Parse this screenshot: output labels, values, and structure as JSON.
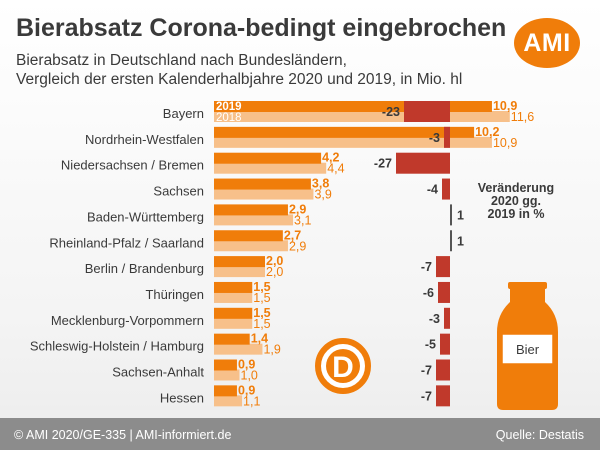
{
  "header": {
    "title": "Bierabsatz Corona-bedingt eingebrochen",
    "subtitle_line1": "Bierabsatz in Deutschland nach Bundesländern,",
    "subtitle_line2": "Vergleich der ersten Kalenderhalbjahre 2020 und 2019, in Mio. hl",
    "logo_text": "AMI"
  },
  "footer": {
    "left": "© AMI 2020/GE-335 | AMI-informiert.de",
    "right": "Quelle: Destatis"
  },
  "decorations": {
    "bottle_label": "Bier",
    "coin_letter": "D"
  },
  "colors": {
    "series_2019": "#f07d0a",
    "series_2018": "#f7c08a",
    "change_bar": "#c0392b",
    "positive_bar": "#555555",
    "text": "#3a3a3a",
    "footer_bg": "#8c8c8c"
  },
  "chart_data": {
    "type": "bar",
    "orientation": "horizontal",
    "categories": [
      "Bayern",
      "Nordrhein-Westfalen",
      "Niedersachsen / Bremen",
      "Sachsen",
      "Baden-Württemberg",
      "Rheinland-Pfalz / Saarland",
      "Berlin / Brandenburg",
      "Thüringen",
      "Mecklenburg-Vorpommern",
      "Schleswig-Holstein / Hamburg",
      "Sachsen-Anhalt",
      "Hessen"
    ],
    "series": [
      {
        "name": "2019",
        "values": [
          10.9,
          10.2,
          4.2,
          3.8,
          2.9,
          2.7,
          2.0,
          1.5,
          1.5,
          1.4,
          0.9,
          0.9
        ],
        "labels": [
          "10,9",
          "10,2",
          "4,2",
          "3,8",
          "2,9",
          "2,7",
          "2,0",
          "1,5",
          "1,5",
          "1,4",
          "0,9",
          "0,9"
        ]
      },
      {
        "name": "2018",
        "values": [
          11.6,
          10.9,
          4.4,
          3.9,
          3.1,
          2.9,
          2.0,
          1.5,
          1.5,
          1.9,
          1.0,
          1.1
        ],
        "labels": [
          "11,6",
          "10,9",
          "4,4",
          "3,9",
          "3,1",
          "2,9",
          "2,0",
          "1,5",
          "1,5",
          "1,9",
          "1,0",
          "1,1"
        ]
      }
    ],
    "change": {
      "title_lines": [
        "Veränderung",
        "2020 gg.",
        "2019 in %"
      ],
      "values": [
        -23,
        -3,
        -27,
        -4,
        1,
        1,
        -7,
        -6,
        -3,
        -5,
        -7,
        -7
      ],
      "labels": [
        "-23",
        "-3",
        "-27",
        "-4",
        "1",
        "1",
        "-7",
        "-6",
        "-3",
        "-5",
        "-7",
        "-7"
      ]
    }
  }
}
